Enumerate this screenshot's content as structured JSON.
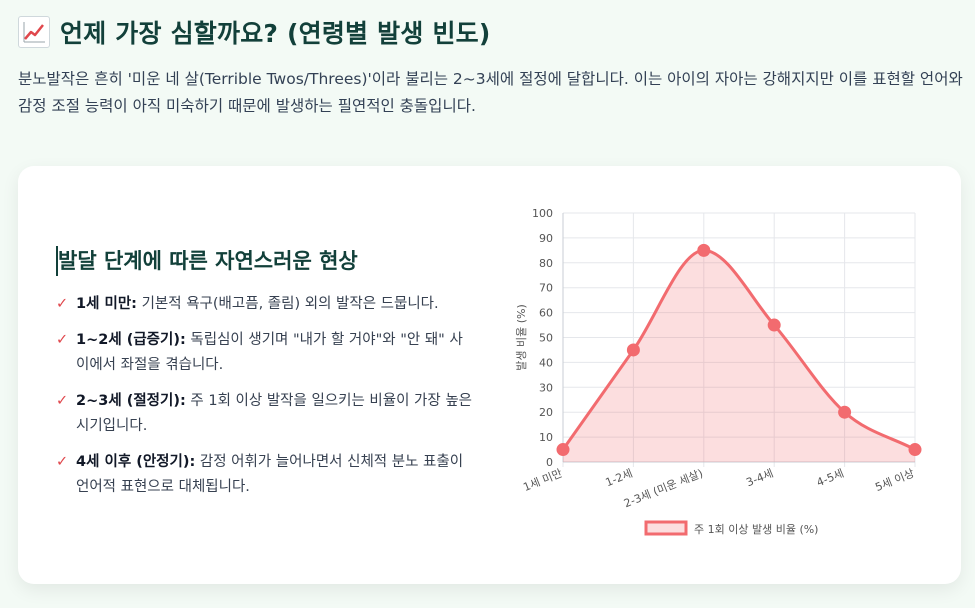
{
  "header": {
    "icon": "chart-increasing-icon",
    "title": "언제 가장 심할까요? (연령별 발생 빈도)",
    "intro": "분노발작은 흔히 '미운 네 살(Terrible Twos/Threes)'이라 불리는 2~3세에 절정에 달합니다. 이는 아이의 자아는 강해지지만 이를 표현할 언어와 감정 조절 능력이 아직 미숙하기 때문에 발생하는 필연적인 충돌입니다."
  },
  "card": {
    "subtitle": "발달 단계에 따른 자연스러운 현상",
    "check_glyph": "✓",
    "items": [
      {
        "label": "1세 미만:",
        "text": " 기본적 욕구(배고픔, 졸림) 외의 발작은 드뭅니다."
      },
      {
        "label": "1~2세 (급증기):",
        "text": " 독립심이 생기며 \"내가 할 거야\"와 \"안 돼\" 사이에서 좌절을 겪습니다."
      },
      {
        "label": "2~3세 (절정기):",
        "text": " 주 1회 이상 발작을 일으키는 비율이 가장 높은 시기입니다."
      },
      {
        "label": "4세 이후 (안정기):",
        "text": " 감정 어휘가 늘어나면서 신체적 분노 표출이 언어적 표현으로 대체됩니다."
      }
    ]
  },
  "colors": {
    "accent": "#f26b6f",
    "fill": "rgba(242,107,111,0.22)",
    "title": "#12403a"
  },
  "chart_data": {
    "type": "line",
    "categories": [
      "1세 미만",
      "1-2세",
      "2-3세 (미운 세살)",
      "3-4세",
      "4-5세",
      "5세 이상"
    ],
    "series": [
      {
        "name": "주 1회 이상 발생 비율 (%)",
        "values": [
          5,
          45,
          85,
          55,
          20,
          5
        ]
      }
    ],
    "ylabel": "발생 비율 (%)",
    "xlabel": "",
    "ylim": [
      0,
      100
    ],
    "yticks": [
      0,
      10,
      20,
      30,
      40,
      50,
      60,
      70,
      80,
      90,
      100
    ],
    "grid": true,
    "area_fill": true,
    "smooth": true,
    "legend_position": "bottom"
  }
}
